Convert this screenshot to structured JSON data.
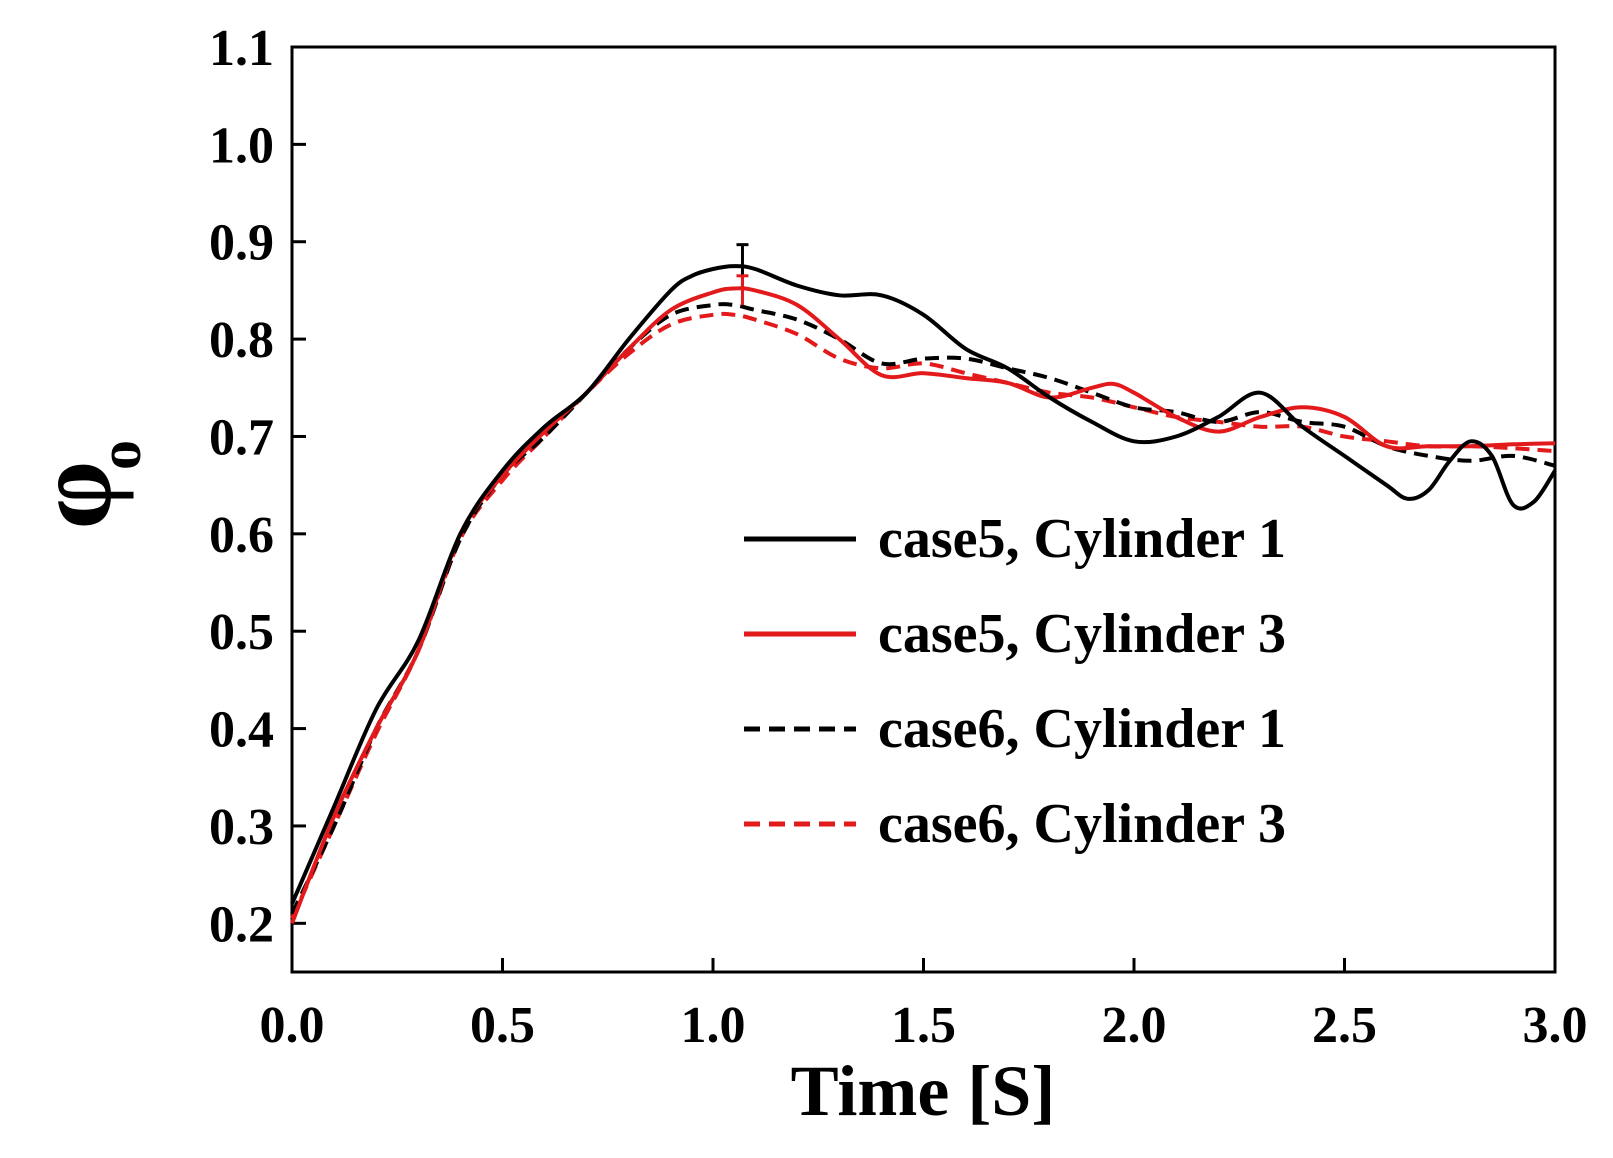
{
  "chart_data": {
    "type": "line",
    "title": "",
    "xlabel": "Time [S]",
    "ylabel_symbol": "φ",
    "ylabel_subscript": "o",
    "xlim": [
      0.0,
      3.0
    ],
    "ylim": [
      0.15,
      1.1
    ],
    "xticks": [
      0.0,
      0.5,
      1.0,
      1.5,
      2.0,
      2.5,
      3.0
    ],
    "xtick_labels": [
      "0.0",
      "0.5",
      "1.0",
      "1.5",
      "2.0",
      "2.5",
      "3.0"
    ],
    "yticks": [
      0.2,
      0.3,
      0.4,
      0.5,
      0.6,
      0.7,
      0.8,
      0.9,
      1.0,
      1.1
    ],
    "ytick_labels": [
      "0.2",
      "0.3",
      "0.4",
      "0.5",
      "0.6",
      "0.7",
      "0.8",
      "0.9",
      "1.0",
      "1.1"
    ],
    "grid": false,
    "legend_position": "center-right",
    "series": [
      {
        "name": "case5, Cylinder 1",
        "color": "#000000",
        "style": "solid",
        "x": [
          0.0,
          0.1,
          0.2,
          0.3,
          0.4,
          0.5,
          0.6,
          0.7,
          0.8,
          0.9,
          0.95,
          1.0,
          1.05,
          1.1,
          1.2,
          1.3,
          1.4,
          1.5,
          1.6,
          1.7,
          1.8,
          1.9,
          2.0,
          2.1,
          2.2,
          2.3,
          2.4,
          2.5,
          2.6,
          2.65,
          2.7,
          2.75,
          2.8,
          2.85,
          2.9,
          2.95,
          3.0
        ],
        "y": [
          0.22,
          0.32,
          0.42,
          0.49,
          0.6,
          0.665,
          0.71,
          0.745,
          0.8,
          0.85,
          0.865,
          0.872,
          0.875,
          0.872,
          0.855,
          0.845,
          0.845,
          0.825,
          0.79,
          0.77,
          0.74,
          0.715,
          0.695,
          0.7,
          0.72,
          0.745,
          0.71,
          0.68,
          0.65,
          0.636,
          0.645,
          0.675,
          0.695,
          0.68,
          0.63,
          0.633,
          0.665
        ]
      },
      {
        "name": "case5, Cylinder 3",
        "color": "#e31a1c",
        "style": "solid",
        "x": [
          0.0,
          0.1,
          0.2,
          0.3,
          0.4,
          0.5,
          0.6,
          0.7,
          0.8,
          0.9,
          1.0,
          1.05,
          1.1,
          1.2,
          1.3,
          1.4,
          1.5,
          1.6,
          1.7,
          1.8,
          1.9,
          1.95,
          2.0,
          2.1,
          2.2,
          2.3,
          2.4,
          2.5,
          2.6,
          2.7,
          2.8,
          2.9,
          3.0
        ],
        "y": [
          0.2,
          0.31,
          0.4,
          0.48,
          0.6,
          0.66,
          0.705,
          0.745,
          0.79,
          0.83,
          0.848,
          0.852,
          0.85,
          0.835,
          0.8,
          0.763,
          0.765,
          0.76,
          0.755,
          0.74,
          0.75,
          0.754,
          0.745,
          0.72,
          0.705,
          0.72,
          0.73,
          0.72,
          0.69,
          0.69,
          0.69,
          0.692,
          0.693
        ]
      },
      {
        "name": "case6, Cylinder 1",
        "color": "#000000",
        "style": "dashed",
        "x": [
          0.0,
          0.1,
          0.2,
          0.3,
          0.4,
          0.5,
          0.6,
          0.7,
          0.8,
          0.9,
          1.0,
          1.05,
          1.1,
          1.2,
          1.3,
          1.4,
          1.5,
          1.6,
          1.7,
          1.8,
          1.9,
          2.0,
          2.1,
          2.2,
          2.3,
          2.4,
          2.5,
          2.6,
          2.7,
          2.8,
          2.9,
          3.0
        ],
        "y": [
          0.21,
          0.3,
          0.4,
          0.48,
          0.595,
          0.66,
          0.7,
          0.745,
          0.79,
          0.825,
          0.835,
          0.835,
          0.83,
          0.82,
          0.8,
          0.775,
          0.78,
          0.78,
          0.77,
          0.76,
          0.745,
          0.73,
          0.725,
          0.715,
          0.725,
          0.715,
          0.71,
          0.69,
          0.68,
          0.675,
          0.68,
          0.67
        ]
      },
      {
        "name": "case6, Cylinder 3",
        "color": "#e31a1c",
        "style": "dashed",
        "x": [
          0.0,
          0.1,
          0.2,
          0.3,
          0.4,
          0.5,
          0.6,
          0.7,
          0.8,
          0.9,
          1.0,
          1.05,
          1.1,
          1.2,
          1.3,
          1.4,
          1.5,
          1.6,
          1.7,
          1.8,
          1.9,
          2.0,
          2.1,
          2.2,
          2.3,
          2.4,
          2.5,
          2.6,
          2.7,
          2.8,
          2.9,
          3.0
        ],
        "y": [
          0.205,
          0.3,
          0.395,
          0.48,
          0.595,
          0.655,
          0.7,
          0.745,
          0.785,
          0.815,
          0.825,
          0.825,
          0.82,
          0.805,
          0.78,
          0.77,
          0.775,
          0.765,
          0.755,
          0.745,
          0.74,
          0.73,
          0.72,
          0.715,
          0.71,
          0.71,
          0.7,
          0.695,
          0.69,
          0.69,
          0.688,
          0.685
        ]
      }
    ],
    "error_bars": [
      {
        "series": "case5, Cylinder 1",
        "x": 1.07,
        "y": 0.875,
        "err": 0.022
      },
      {
        "series": "case5, Cylinder 3",
        "x": 1.07,
        "y": 0.85,
        "err": 0.015
      }
    ]
  }
}
